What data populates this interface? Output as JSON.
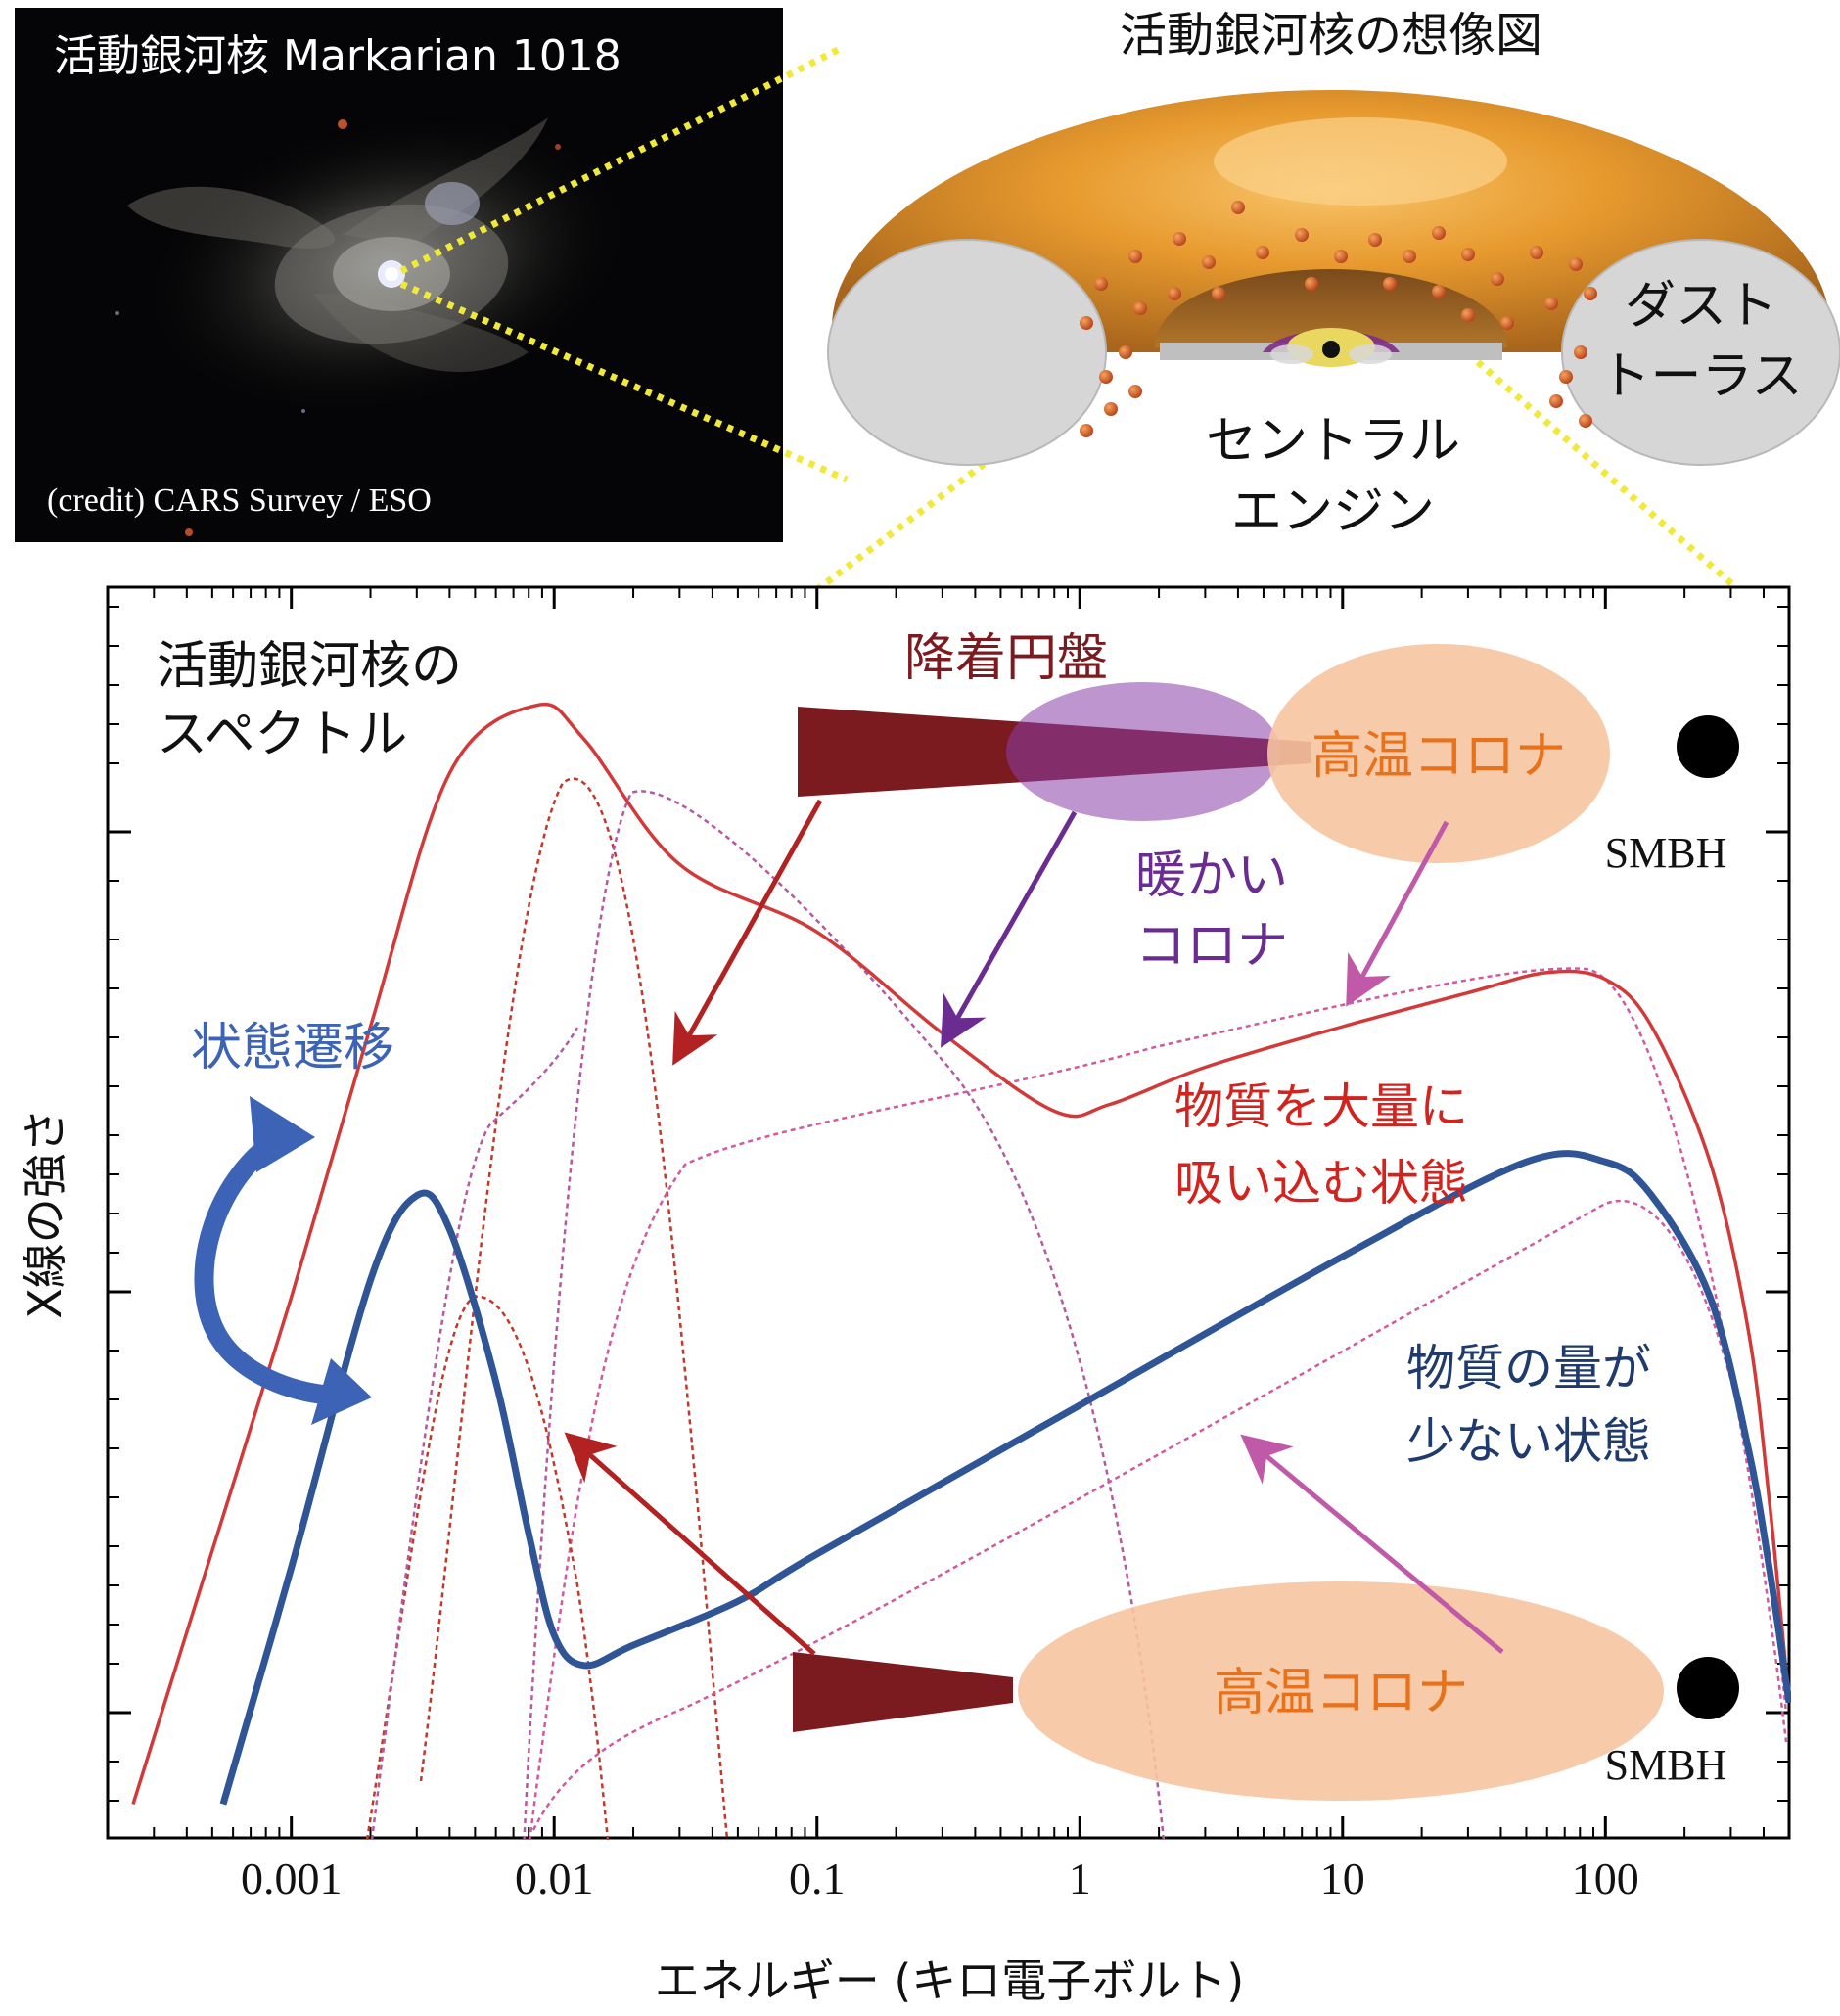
{
  "photo": {
    "title": "活動銀河核 Markarian 1018",
    "credit": "(credit) CARS Survey / ESO"
  },
  "illustration": {
    "title": "活動銀河核の想像図",
    "dust_torus_line1": "ダスト",
    "dust_torus_line2": "トーラス",
    "central_engine_line1": "セントラル",
    "central_engine_line2": "エンジン"
  },
  "chart_data": {
    "type": "line",
    "title_line1": "活動銀河核の",
    "title_line2": "スペクトル",
    "xlabel": "エネルギー (キロ電子ボルト)",
    "ylabel": "X線の強さ",
    "x_scale": "log",
    "xlim": [
      0.0002,
      500
    ],
    "x_ticks": [
      "0.001",
      "0.01",
      "0.1",
      "1",
      "10",
      "100"
    ],
    "y_ticks_shown": false,
    "series": [
      {
        "name": "物質を大量に吸い込む状態",
        "color": "#d23a3a",
        "x": [
          0.00025,
          0.0005,
          0.001,
          0.002,
          0.004,
          0.0085,
          0.013,
          0.03,
          0.1,
          0.3,
          0.8,
          1.3,
          3,
          10,
          30,
          60,
          100,
          150,
          250,
          350,
          420,
          500
        ],
        "y": [
          -1.8,
          -1.05,
          -0.3,
          0.5,
          1.25,
          1.45,
          1.35,
          0.98,
          0.78,
          0.48,
          0.25,
          0.27,
          0.38,
          0.5,
          0.6,
          0.66,
          0.64,
          0.5,
          0.1,
          -0.4,
          -0.9,
          -1.5
        ]
      },
      {
        "name": "物質の量が少ない状態",
        "color": "#2f5597",
        "x": [
          0.00055,
          0.001,
          0.002,
          0.003,
          0.004,
          0.006,
          0.008,
          0.01,
          0.013,
          0.02,
          0.05,
          0.1,
          1,
          10,
          50,
          100,
          150,
          250,
          350,
          420,
          500
        ],
        "y": [
          -1.8,
          -1.1,
          -0.25,
          -0.0,
          -0.1,
          -0.55,
          -1.0,
          -1.3,
          -1.39,
          -1.33,
          -1.2,
          -1.06,
          -0.62,
          -0.18,
          0.1,
          0.1,
          0.0,
          -0.3,
          -0.75,
          -1.1,
          -1.5
        ]
      }
    ],
    "components_state_high": [
      "降着円盤",
      "暖かいコロナ",
      "高温コロナ"
    ],
    "components_state_low": [
      "降着円盤",
      "高温コロナ"
    ]
  },
  "labels": {
    "disk": "降着円盤",
    "warm_corona_line1": "暖かい",
    "warm_corona_line2": "コロナ",
    "hot_corona": "高温コロナ",
    "smbh": "SMBH",
    "transition": "状態遷移",
    "high_state_line1": "物質を大量に",
    "high_state_line2": "吸い込む状態",
    "low_state_line1": "物質の量が",
    "low_state_line2": "少ない状態"
  },
  "colors": {
    "dark_red": "#7b1a1f",
    "purple": "#6b2c91",
    "orange_text": "#e8711c",
    "corona_fill": "#f6c4a0",
    "blue": "#3c63b5",
    "red": "#d23a3a"
  }
}
